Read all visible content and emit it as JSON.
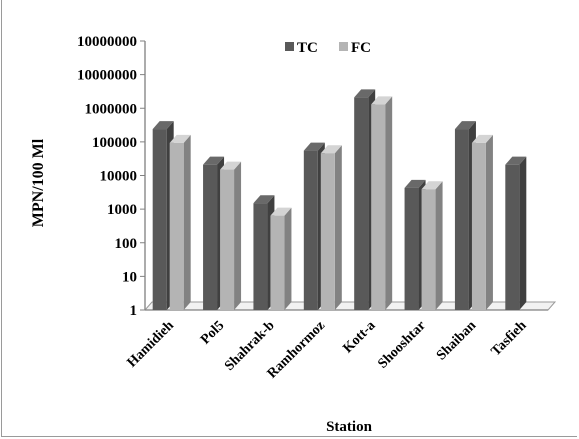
{
  "chart_data": {
    "type": "bar",
    "title": "",
    "xlabel": "Station",
    "ylabel": "MPN/100 Ml",
    "y_scale": "log",
    "ylim": [
      1,
      10000000
    ],
    "y_tick_labels": [
      "1",
      "10",
      "100",
      "1000",
      "10000",
      "100000",
      "1000000",
      "10000000",
      "10000000"
    ],
    "categories": [
      "Hamidieh",
      "Pol5",
      "Shahrak-b",
      "Ramhormoz",
      "Kott-a",
      "Shooshtar",
      "Shaiban",
      "Tasfieh"
    ],
    "series": [
      {
        "name": "TC",
        "color": "#595959",
        "values": [
          240000,
          21000,
          1500,
          55000,
          2100000,
          4300,
          240000,
          21000
        ]
      },
      {
        "name": "FC",
        "color": "#b4b4b4",
        "values": [
          93000,
          15000,
          640,
          46000,
          1300000,
          3900,
          93000,
          null
        ]
      }
    ],
    "legend_position": "top",
    "grid": false,
    "style": "3d-clustered-bar"
  }
}
